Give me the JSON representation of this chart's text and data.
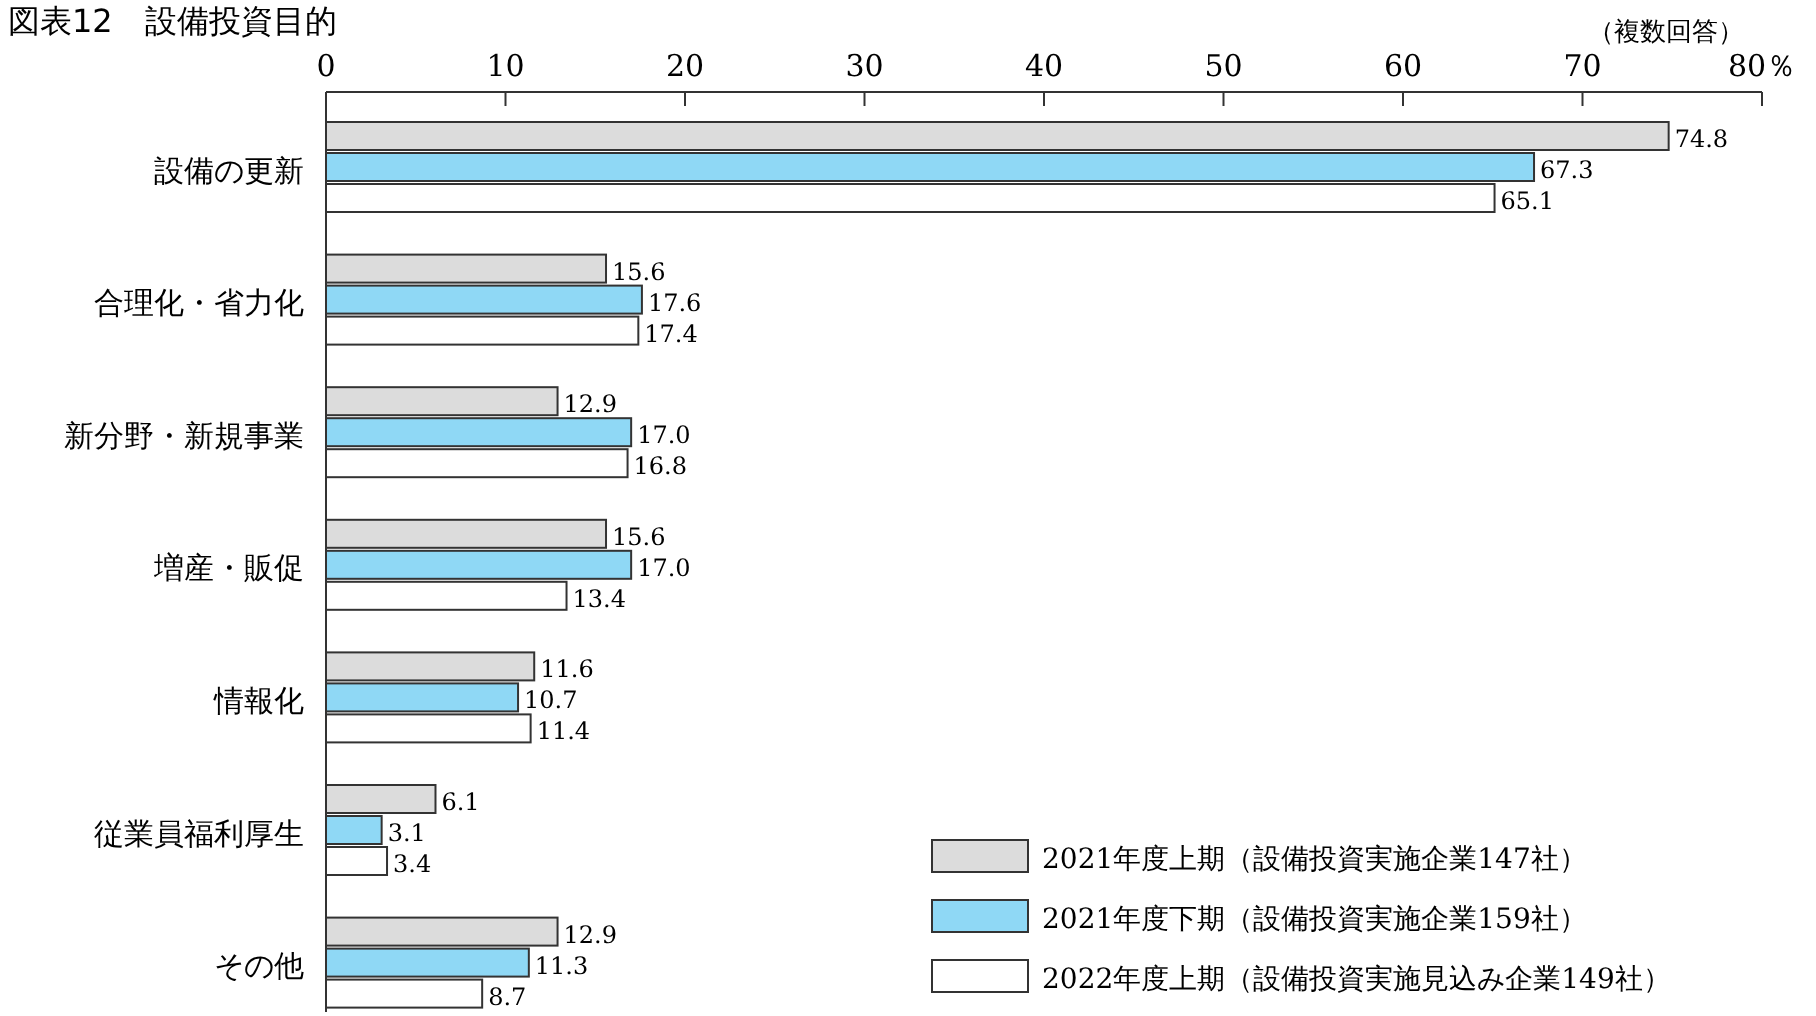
{
  "chart_data": {
    "type": "bar",
    "orientation": "horizontal",
    "title": "図表12　設備投資目的",
    "annotations": [
      "（複数回答）"
    ],
    "categories": [
      "設備の更新",
      "合理化・省力化",
      "新分野・新規事業",
      "増産・販促",
      "情報化",
      "従業員福利厚生",
      "その他"
    ],
    "series": [
      {
        "name": "2021年度上期（設備投資実施企業147社）",
        "color": "#dcdcdc",
        "values": [
          74.8,
          15.6,
          12.9,
          15.6,
          11.6,
          6.1,
          12.9
        ],
        "value_labels": [
          "74.8",
          "15.6",
          "12.9",
          "15.6",
          "11.6",
          "6.1",
          "12.9"
        ]
      },
      {
        "name": "2021年度下期（設備投資実施企業159社）",
        "color": "#8fd8f5",
        "values": [
          67.3,
          17.6,
          17.0,
          17.0,
          10.7,
          3.1,
          11.3
        ],
        "value_labels": [
          "67.3",
          "17.6",
          "17.0",
          "17.0",
          "10.7",
          "3.1",
          "11.3"
        ]
      },
      {
        "name": "2022年度上期（設備投資実施見込み企業149社）",
        "color": "#ffffff",
        "values": [
          65.1,
          17.4,
          16.8,
          13.4,
          11.4,
          3.4,
          8.7
        ],
        "value_labels": [
          "65.1",
          "17.4",
          "16.8",
          "13.4",
          "11.4",
          "3.4",
          "8.7"
        ]
      }
    ],
    "xlim": [
      0,
      80
    ],
    "xticks": [
      0,
      10,
      20,
      30,
      40,
      50,
      60,
      70,
      {
        "value": 80,
        "label": "80％"
      }
    ],
    "grid": false,
    "legend": "bottom right"
  }
}
